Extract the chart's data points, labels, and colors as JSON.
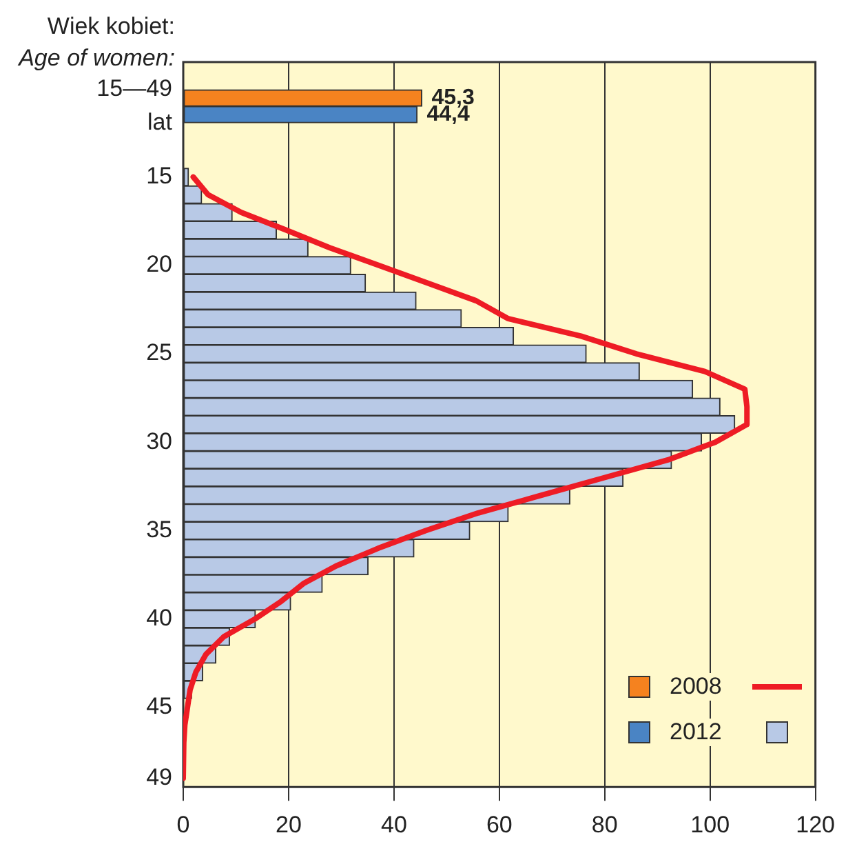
{
  "chart_data": {
    "type": "bar",
    "title": "Wiek kobiet:\nAge of women:",
    "orientation": "horizontal",
    "categories": [
      null,
      null,
      "15—49 lat",
      null,
      null,
      null,
      "15",
      null,
      null,
      null,
      null,
      "20",
      null,
      null,
      null,
      null,
      "25",
      null,
      null,
      null,
      null,
      "30",
      null,
      null,
      null,
      null,
      "35",
      null,
      null,
      null,
      null,
      "40",
      null,
      null,
      null,
      null,
      "45",
      null,
      null,
      null,
      "49"
    ],
    "series": [
      {
        "name": "2008",
        "color": "#f5821f",
        "values": [
          null,
          null,
          45.3,
          null,
          null,
          null,
          null,
          null,
          null,
          null,
          null,
          null,
          null,
          null,
          null,
          null,
          null,
          null,
          null,
          null,
          null,
          null,
          null,
          null,
          null,
          null,
          null,
          null,
          null,
          null,
          null,
          null,
          null,
          null,
          null,
          null,
          null,
          null,
          null,
          null,
          null
        ],
        "value_labels": [
          null,
          null,
          "45,3",
          null,
          null,
          null,
          null,
          null,
          null,
          null,
          null,
          null,
          null,
          null,
          null,
          null,
          null,
          null,
          null,
          null,
          null,
          null,
          null,
          null,
          null,
          null,
          null,
          null,
          null,
          null,
          null,
          null,
          null,
          null,
          null,
          null,
          null,
          null,
          null,
          null,
          null
        ]
      },
      {
        "name": "2012",
        "color": "#4a84c4",
        "values": [
          null,
          null,
          44.4,
          null,
          null,
          null,
          null,
          null,
          null,
          null,
          null,
          null,
          null,
          null,
          null,
          null,
          null,
          null,
          null,
          null,
          null,
          null,
          null,
          null,
          null,
          null,
          null,
          null,
          null,
          null,
          null,
          null,
          null,
          null,
          null,
          null,
          null,
          null,
          null,
          null,
          null
        ],
        "value_labels": [
          null,
          null,
          "44,4",
          null,
          null,
          null,
          null,
          null,
          null,
          null,
          null,
          null,
          null,
          null,
          null,
          null,
          null,
          null,
          null,
          null,
          null,
          null,
          null,
          null,
          null,
          null,
          null,
          null,
          null,
          null,
          null,
          null,
          null,
          null,
          null,
          null,
          null,
          null,
          null,
          null,
          null
        ]
      },
      {
        "type": "line",
        "color": "#ee1c25",
        "values": [
          null,
          null,
          null,
          null,
          null,
          null,
          1.9,
          4.7,
          11,
          19.5,
          27.8,
          37.1,
          46.4,
          55.6,
          61.6,
          75.5,
          86,
          99,
          106.6,
          107,
          107,
          101,
          92,
          80,
          68,
          56,
          46,
          37,
          29,
          22.8,
          18.6,
          13.6,
          7.7,
          4.3,
          2.4,
          1.3,
          0.8,
          0.3,
          0.1,
          0,
          0
        ]
      },
      {
        "color": "#b8c9e6",
        "values": [
          null,
          null,
          null,
          null,
          null,
          null,
          1,
          3.5,
          9.3,
          17.7,
          23.7,
          31.8,
          34.6,
          44.2,
          52.8,
          62.7,
          76.5,
          86.6,
          96.7,
          101.9,
          104.7,
          98.4,
          92.7,
          83.5,
          73.4,
          61.7,
          54.4,
          43.8,
          35.1,
          26.4,
          20.4,
          13.7,
          8.8,
          6.2,
          3.7,
          1.6,
          null,
          null,
          null,
          null,
          null
        ]
      }
    ],
    "xlim": [
      0,
      120
    ],
    "xticks": [
      0,
      20,
      40,
      60,
      80,
      100,
      120
    ],
    "grid": "x",
    "legend": "bottom right",
    "marker": "none"
  }
}
